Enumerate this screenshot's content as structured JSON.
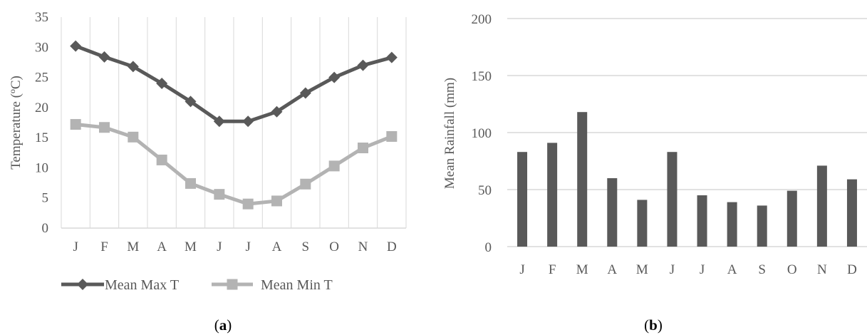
{
  "colors": {
    "max_series": "#595959",
    "min_series": "#b3b3b3",
    "bars": "#595959",
    "grid": "#d9d9d9",
    "text": "#595959"
  },
  "chart_data": [
    {
      "type": "line",
      "panel_label": "a",
      "categories": [
        "J",
        "F",
        "M",
        "A",
        "M",
        "J",
        "J",
        "A",
        "S",
        "O",
        "N",
        "D"
      ],
      "series": [
        {
          "name": "Mean Max T",
          "marker": "diamond",
          "values": [
            30.2,
            28.4,
            26.8,
            24.0,
            21.0,
            17.7,
            17.7,
            19.3,
            22.4,
            25.0,
            27.0,
            28.3
          ]
        },
        {
          "name": "Mean Min T",
          "marker": "square",
          "values": [
            17.2,
            16.7,
            15.1,
            11.3,
            7.4,
            5.6,
            4.0,
            4.5,
            7.3,
            10.3,
            13.3,
            15.2
          ]
        }
      ],
      "ylabel": "Temperature (ºC)",
      "ylim": [
        0,
        35
      ],
      "yticks": [
        0,
        5,
        10,
        15,
        20,
        25,
        30,
        35
      ],
      "grid": "vertical",
      "legend": "bottom"
    },
    {
      "type": "bar",
      "panel_label": "b",
      "categories": [
        "J",
        "F",
        "M",
        "A",
        "M",
        "J",
        "J",
        "A",
        "S",
        "O",
        "N",
        "D"
      ],
      "values": [
        83,
        91,
        118,
        60,
        41,
        83,
        45,
        39,
        36,
        49,
        71,
        59
      ],
      "ylabel": "Mean Rainfall (mm)",
      "ylim": [
        0,
        200
      ],
      "yticks": [
        0,
        50,
        100,
        150,
        200
      ],
      "grid": "horizontal"
    }
  ]
}
